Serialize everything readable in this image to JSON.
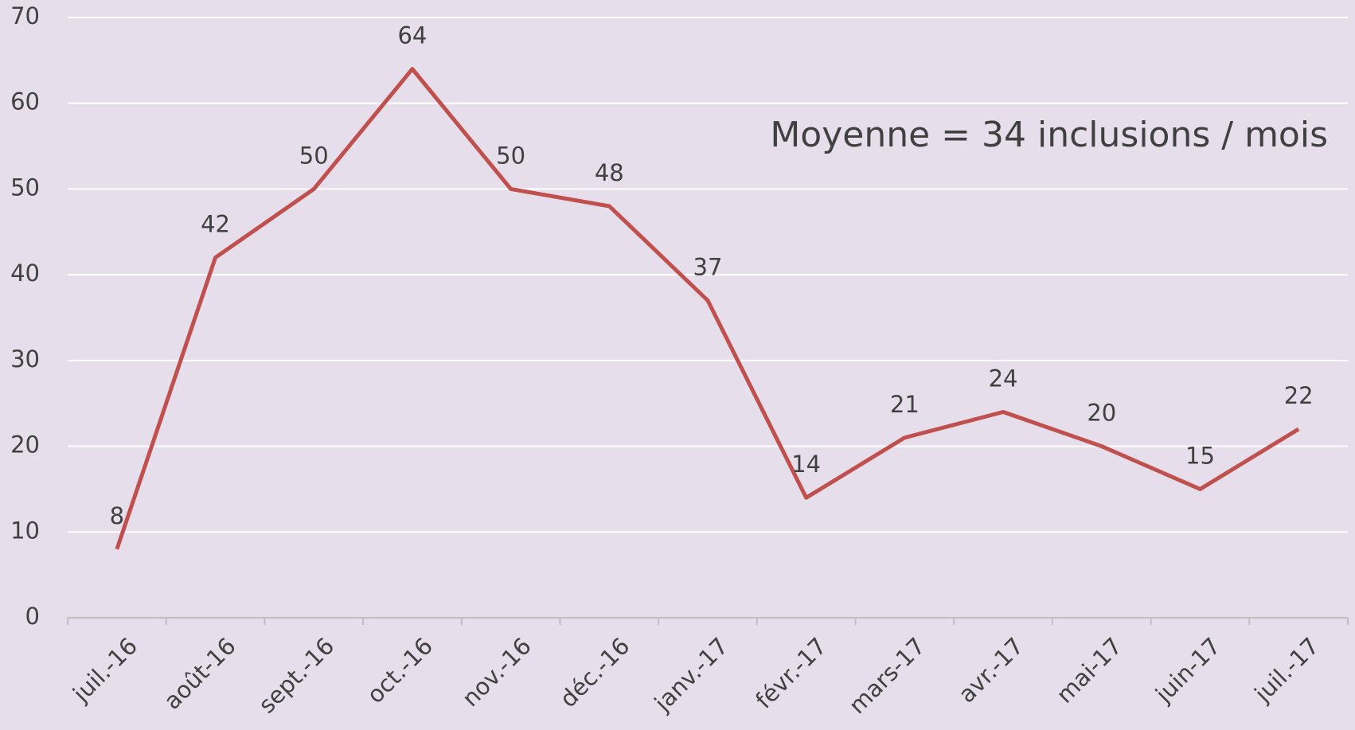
{
  "chart_data": {
    "type": "line",
    "annotation": "Moyenne = 34 inclusions / mois",
    "categories": [
      "juil.-16",
      "août-16",
      "sept.-16",
      "oct.-16",
      "nov.-16",
      "déc.-16",
      "janv.-17",
      "févr.-17",
      "mars-17",
      "avr.-17",
      "mai-17",
      "juin-17",
      "juil.-17"
    ],
    "values": [
      8,
      42,
      50,
      64,
      50,
      48,
      37,
      14,
      21,
      24,
      20,
      15,
      22
    ],
    "color": "#c0504d",
    "ylim": [
      0,
      70
    ],
    "yticks": [
      0,
      10,
      20,
      30,
      40,
      50,
      60,
      70
    ],
    "grid": true
  }
}
